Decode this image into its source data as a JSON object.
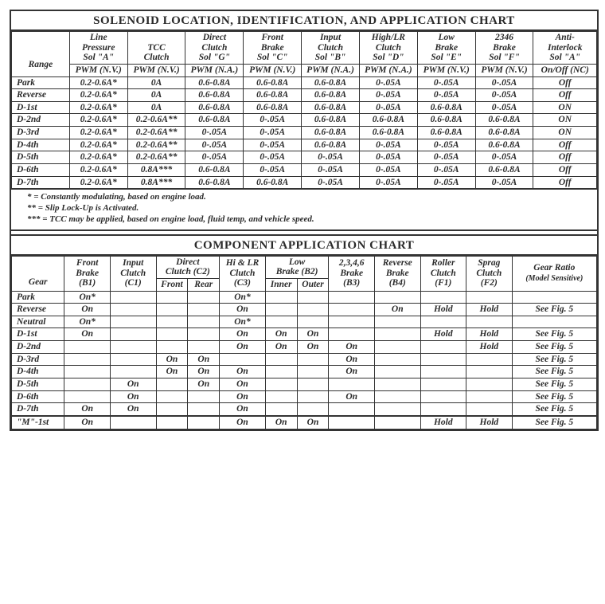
{
  "chart1": {
    "title": "SOLENOID LOCATION, IDENTIFICATION, AND APPLICATION CHART",
    "headers": [
      {
        "l1": "Line",
        "l2": "Pressure",
        "l3": "Sol \"A\"",
        "sub": "PWM (N.V.)"
      },
      {
        "l1": "TCC",
        "l2": "Clutch",
        "l3": "",
        "sub": "PWM (N.V.)"
      },
      {
        "l1": "Direct",
        "l2": "Clutch",
        "l3": "Sol \"G\"",
        "sub": "PWM (N.A.)"
      },
      {
        "l1": "Front",
        "l2": "Brake",
        "l3": "Sol \"C\"",
        "sub": "PWM (N.V.)"
      },
      {
        "l1": "Input",
        "l2": "Clutch",
        "l3": "Sol \"B\"",
        "sub": "PWM (N.A.)"
      },
      {
        "l1": "High/LR",
        "l2": "Clutch",
        "l3": "Sol \"D\"",
        "sub": "PWM (N.A.)"
      },
      {
        "l1": "Low",
        "l2": "Brake",
        "l3": "Sol \"E\"",
        "sub": "PWM (N.V.)"
      },
      {
        "l1": "2346",
        "l2": "Brake",
        "l3": "Sol \"F\"",
        "sub": "PWM (N.V.)"
      },
      {
        "l1": "Anti-",
        "l2": "Interlock",
        "l3": "Sol \"A\"",
        "sub": "On/Off (NC)"
      }
    ],
    "range_label": "Range",
    "rows": [
      {
        "r": "Park",
        "c": [
          "0.2-0.6A*",
          "0A",
          "0.6-0.8A",
          "0.6-0.8A",
          "0.6-0.8A",
          "0-.05A",
          "0-.05A",
          "0-.05A",
          "Off"
        ]
      },
      {
        "r": "Reverse",
        "c": [
          "0.2-0.6A*",
          "0A",
          "0.6-0.8A",
          "0.6-0.8A",
          "0.6-0.8A",
          "0-.05A",
          "0-.05A",
          "0-.05A",
          "Off"
        ]
      },
      {
        "r": "D-1st",
        "c": [
          "0.2-0.6A*",
          "0A",
          "0.6-0.8A",
          "0.6-0.8A",
          "0.6-0.8A",
          "0-.05A",
          "0.6-0.8A",
          "0-.05A",
          "ON"
        ]
      },
      {
        "r": "D-2nd",
        "c": [
          "0.2-0.6A*",
          "0.2-0.6A**",
          "0.6-0.8A",
          "0-.05A",
          "0.6-0.8A",
          "0.6-0.8A",
          "0.6-0.8A",
          "0.6-0.8A",
          "ON"
        ]
      },
      {
        "r": "D-3rd",
        "c": [
          "0.2-0.6A*",
          "0.2-0.6A**",
          "0-.05A",
          "0-.05A",
          "0.6-0.8A",
          "0.6-0.8A",
          "0.6-0.8A",
          "0.6-0.8A",
          "ON"
        ]
      },
      {
        "r": "D-4th",
        "c": [
          "0.2-0.6A*",
          "0.2-0.6A**",
          "0-.05A",
          "0-.05A",
          "0.6-0.8A",
          "0-.05A",
          "0-.05A",
          "0.6-0.8A",
          "Off"
        ]
      },
      {
        "r": "D-5th",
        "c": [
          "0.2-0.6A*",
          "0.2-0.6A**",
          "0-.05A",
          "0-.05A",
          "0-.05A",
          "0-.05A",
          "0-.05A",
          "0-.05A",
          "Off"
        ]
      },
      {
        "r": "D-6th",
        "c": [
          "0.2-0.6A*",
          "0.8A***",
          "0.6-0.8A",
          "0-.05A",
          "0-.05A",
          "0-.05A",
          "0-.05A",
          "0.6-0.8A",
          "Off"
        ]
      },
      {
        "r": "D-7th",
        "c": [
          "0.2-0.6A*",
          "0.8A***",
          "0.6-0.8A",
          "0.6-0.8A",
          "0-.05A",
          "0-.05A",
          "0-.05A",
          "0-.05A",
          "Off"
        ]
      }
    ],
    "notes": [
      "* = Constantly modulating, based on engine load.",
      "** = Slip Lock-Up is Activated.",
      "*** = TCC may be applied, based on engine load, fluid temp, and vehicle speed."
    ]
  },
  "chart2": {
    "title": "COMPONENT APPLICATION CHART",
    "col_gear": "Gear",
    "headers": {
      "b1": {
        "l1": "Front",
        "l2": "Brake",
        "l3": "(B1)"
      },
      "c1": {
        "l1": "Input",
        "l2": "Clutch",
        "l3": "(C1)"
      },
      "c2": {
        "l1": "Direct",
        "l2": "Clutch (C2)",
        "front": "Front",
        "rear": "Rear"
      },
      "c3": {
        "l1": "Hi & LR",
        "l2": "Clutch",
        "l3": "(C3)"
      },
      "b2": {
        "l1": "Low",
        "l2": "Brake (B2)",
        "inner": "Inner",
        "outer": "Outer"
      },
      "b3": {
        "l1": "2,3,4,6",
        "l2": "Brake",
        "l3": "(B3)"
      },
      "b4": {
        "l1": "Reverse",
        "l2": "Brake",
        "l3": "(B4)"
      },
      "f1": {
        "l1": "Roller",
        "l2": "Clutch",
        "l3": "(F1)"
      },
      "f2": {
        "l1": "Sprag",
        "l2": "Clutch",
        "l3": "(F2)"
      },
      "ratio": {
        "l1": "Gear Ratio",
        "l2": "(Model Sensitive)"
      }
    },
    "rows": [
      {
        "g": "Park",
        "c": [
          "On*",
          "",
          "",
          "",
          "On*",
          "",
          "",
          "",
          "",
          "",
          "",
          ""
        ]
      },
      {
        "g": "Reverse",
        "c": [
          "On",
          "",
          "",
          "",
          "On",
          "",
          "",
          "",
          "On",
          "Hold",
          "Hold",
          "See Fig. 5"
        ]
      },
      {
        "g": "Neutral",
        "c": [
          "On*",
          "",
          "",
          "",
          "On*",
          "",
          "",
          "",
          "",
          "",
          "",
          ""
        ]
      },
      {
        "g": "D-1st",
        "c": [
          "On",
          "",
          "",
          "",
          "On",
          "On",
          "On",
          "",
          "",
          "Hold",
          "Hold",
          "See Fig. 5"
        ]
      },
      {
        "g": "D-2nd",
        "c": [
          "",
          "",
          "",
          "",
          "On",
          "On",
          "On",
          "On",
          "",
          "",
          "Hold",
          "See Fig. 5"
        ]
      },
      {
        "g": "D-3rd",
        "c": [
          "",
          "",
          "On",
          "On",
          "",
          "",
          "",
          "On",
          "",
          "",
          "",
          "See Fig. 5"
        ]
      },
      {
        "g": "D-4th",
        "c": [
          "",
          "",
          "On",
          "On",
          "On",
          "",
          "",
          "On",
          "",
          "",
          "",
          "See Fig. 5"
        ]
      },
      {
        "g": "D-5th",
        "c": [
          "",
          "On",
          "",
          "On",
          "On",
          "",
          "",
          "",
          "",
          "",
          "",
          "See Fig. 5"
        ]
      },
      {
        "g": "D-6th",
        "c": [
          "",
          "On",
          "",
          "",
          "On",
          "",
          "",
          "On",
          "",
          "",
          "",
          "See Fig. 5"
        ]
      },
      {
        "g": "D-7th",
        "c": [
          "On",
          "On",
          "",
          "",
          "On",
          "",
          "",
          "",
          "",
          "",
          "",
          "See Fig. 5"
        ]
      }
    ],
    "mrow": {
      "g": "\"M\"-1st",
      "c": [
        "On",
        "",
        "",
        "",
        "On",
        "On",
        "On",
        "",
        "",
        "Hold",
        "Hold",
        "See Fig. 5"
      ]
    }
  }
}
